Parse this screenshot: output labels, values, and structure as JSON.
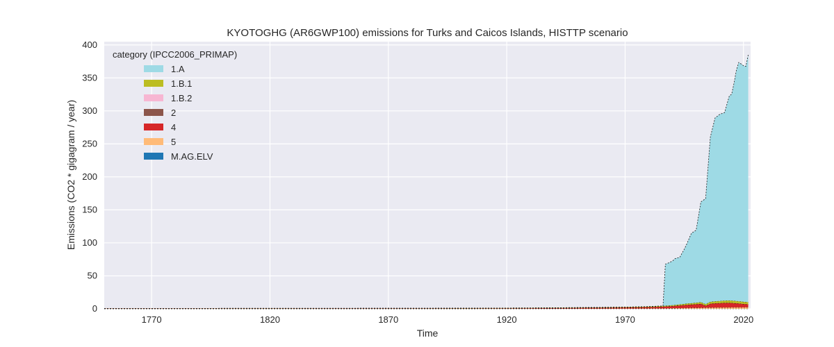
{
  "chart_data": {
    "type": "area",
    "title": "KYOTOGHG (AR6GWP100) emissions for Turks and Caicos Islands, HISTTP scenario",
    "xlabel": "Time",
    "ylabel": "Emissions (CO2 * gigagram / year)",
    "xlim": [
      1750,
      2023
    ],
    "ylim": [
      0,
      405
    ],
    "x_ticks": [
      1770,
      1820,
      1870,
      1920,
      1970,
      2020
    ],
    "y_ticks": [
      0,
      50,
      100,
      150,
      200,
      250,
      300,
      350,
      400
    ],
    "grid": true,
    "legend_title": "category (IPCC2006_PRIMAP)",
    "legend_position": "top-left",
    "x": [
      1750,
      1850,
      1900,
      1930,
      1950,
      1970,
      1980,
      1985,
      1986,
      1987,
      1988,
      1990,
      1991,
      1992,
      1993,
      1995,
      1996,
      1998,
      2000,
      2002,
      2004,
      2006,
      2008,
      2010,
      2012,
      2014,
      2015,
      2016,
      2017,
      2018,
      2019,
      2020,
      2021,
      2022
    ],
    "series": [
      {
        "name": "M.AG.ELV",
        "color": "#1f77b4",
        "values": [
          0.1,
          0.1,
          0.1,
          0.1,
          0.1,
          0.1,
          0.1,
          0.1,
          0.1,
          0.1,
          0.1,
          0.1,
          0.1,
          0.1,
          0.1,
          0.1,
          0.1,
          0.1,
          0.1,
          0.1,
          0.1,
          0.1,
          0.1,
          0.1,
          0.1,
          0.1,
          0.1,
          0.1,
          0.1,
          0.1,
          0.1,
          0.1,
          0.1,
          0.1
        ]
      },
      {
        "name": "5",
        "color": "#ffbb78",
        "values": [
          0.1,
          0.1,
          0.1,
          0.2,
          0.3,
          0.4,
          0.5,
          0.6,
          0.6,
          0.7,
          0.7,
          0.8,
          0.9,
          1.0,
          1.0,
          1.1,
          1.2,
          1.3,
          1.4,
          1.5,
          1.6,
          1.7,
          1.8,
          1.9,
          2.0,
          2.0,
          2.1,
          2.1,
          2.1,
          2.2,
          2.2,
          2.2,
          2.3,
          2.3
        ]
      },
      {
        "name": "4",
        "color": "#d62728",
        "values": [
          0.3,
          0.4,
          0.5,
          0.6,
          1.0,
          1.5,
          2.0,
          2.5,
          2.6,
          2.8,
          3.0,
          3.3,
          3.5,
          3.7,
          4.0,
          4.5,
          4.8,
          5.2,
          5.5,
          6.0,
          3.0,
          6.0,
          6.5,
          6.7,
          7.0,
          7.0,
          6.8,
          6.5,
          6.2,
          5.8,
          5.5,
          5.0,
          4.8,
          4.5
        ]
      },
      {
        "name": "2",
        "color": "#8c564b",
        "values": [
          0,
          0,
          0,
          0,
          0,
          0,
          0,
          0,
          0,
          0,
          0,
          0,
          0,
          0,
          0,
          0,
          0,
          0,
          0,
          0,
          0,
          0,
          0,
          0,
          0,
          0,
          0,
          0,
          0,
          0,
          0,
          0,
          0,
          0
        ]
      },
      {
        "name": "1.B.2",
        "color": "#f7b6d2",
        "values": [
          0,
          0,
          0,
          0,
          0,
          0,
          0,
          0,
          0,
          0,
          0,
          0,
          0,
          0,
          0,
          0,
          0,
          0,
          0,
          0,
          0,
          0,
          0,
          0,
          0,
          0,
          0,
          0,
          0,
          0,
          0,
          0,
          0,
          0
        ]
      },
      {
        "name": "1.B.1",
        "color": "#bcbd22",
        "values": [
          0.1,
          0.2,
          0.3,
          0.4,
          0.5,
          0.6,
          0.8,
          1.0,
          1.0,
          1.1,
          1.2,
          1.3,
          1.4,
          1.5,
          1.6,
          1.8,
          1.9,
          2.0,
          2.2,
          2.5,
          2.4,
          2.8,
          3.0,
          3.2,
          3.4,
          3.5,
          3.5,
          3.5,
          3.5,
          3.4,
          3.4,
          3.3,
          3.3,
          3.2
        ]
      },
      {
        "name": "1.A",
        "color": "#9edae5",
        "values": [
          0,
          0,
          0,
          0,
          0,
          0,
          0,
          0,
          0,
          63,
          64,
          67,
          70,
          71,
          71,
          83,
          90,
          106,
          110,
          152,
          160,
          250,
          278,
          283,
          285,
          310,
          313,
          330,
          350,
          362,
          360,
          358,
          357,
          375
        ]
      }
    ],
    "legend_order": [
      "1.A",
      "1.B.1",
      "1.B.2",
      "2",
      "4",
      "5",
      "M.AG.ELV"
    ]
  }
}
